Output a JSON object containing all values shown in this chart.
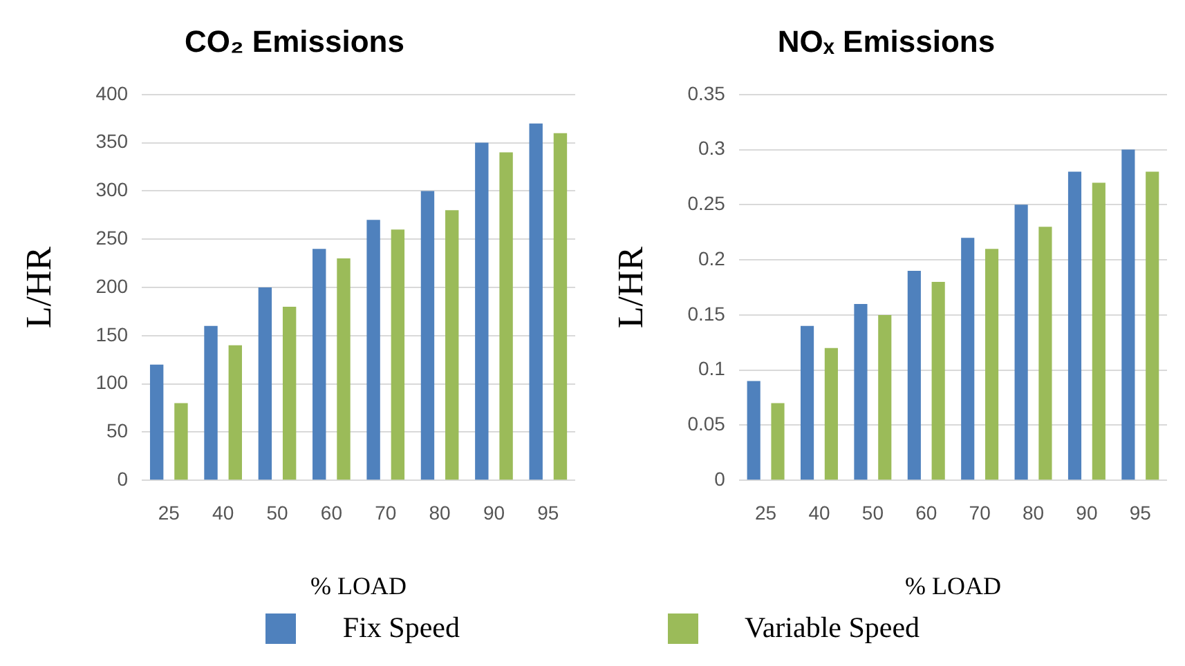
{
  "chart_data": [
    {
      "type": "bar",
      "title": "CO₂ Emissions",
      "xlabel": "% LOAD",
      "ylabel": "L/HR",
      "categories": [
        "25",
        "40",
        "50",
        "60",
        "70",
        "80",
        "90",
        "95"
      ],
      "series": [
        {
          "name": "Fix Speed",
          "color": "#4f81bd",
          "values": [
            120,
            160,
            200,
            240,
            270,
            300,
            350,
            370
          ]
        },
        {
          "name": "Variable Speed",
          "color": "#9bbb59",
          "values": [
            80,
            140,
            180,
            230,
            260,
            280,
            340,
            360
          ]
        }
      ],
      "ylim": [
        0,
        400
      ],
      "yticks": [
        0,
        50,
        100,
        150,
        200,
        250,
        300,
        350,
        400
      ],
      "grid": "y",
      "legend": "bottom"
    },
    {
      "type": "bar",
      "title": "NOₓ Emissions",
      "xlabel": "% LOAD",
      "ylabel": "L/HR",
      "categories": [
        "25",
        "40",
        "50",
        "60",
        "70",
        "80",
        "90",
        "95"
      ],
      "series": [
        {
          "color": "#4f81bd",
          "values": [
            0.09,
            0.14,
            0.16,
            0.19,
            0.22,
            0.25,
            0.28,
            0.3
          ]
        },
        {
          "color": "#9bbb59",
          "values": [
            0.07,
            0.12,
            0.15,
            0.18,
            0.21,
            0.23,
            0.27,
            0.28
          ]
        }
      ],
      "ylim": [
        0,
        0.35
      ],
      "yticks": [
        0,
        0.05,
        0.1,
        0.15,
        0.2,
        0.25,
        0.3,
        0.35
      ],
      "grid": "y"
    }
  ]
}
